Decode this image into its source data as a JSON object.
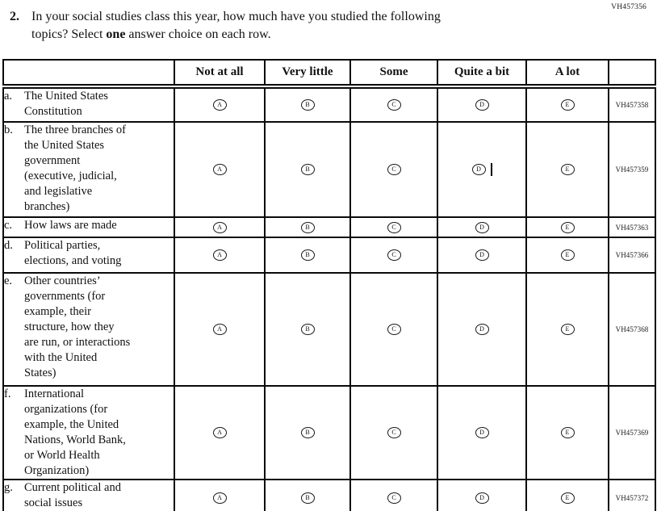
{
  "page": {
    "top_right_code": "VH457356",
    "question": {
      "number": "2.",
      "text_before_bold": "In your social studies class this year, how much have you studied the following\ntopics? Select ",
      "bold_word": "one",
      "text_after_bold": " answer choice on each row."
    }
  },
  "table": {
    "columns": [
      "Not at all",
      "Very little",
      "Some",
      "Quite a bit",
      "A lot"
    ],
    "options": [
      "A",
      "B",
      "C",
      "D",
      "E"
    ],
    "rows": [
      {
        "letter": "a.",
        "label": "The United States\nConstitution",
        "code": "VH457358"
      },
      {
        "letter": "b.",
        "label": "The three branches of\nthe United States\ngovernment\n(executive, judicial,\nand legislative\nbranches)",
        "code": "VH457359",
        "cursor_after": "D"
      },
      {
        "letter": "c.",
        "label": "How laws are made",
        "code": "VH457363"
      },
      {
        "letter": "d.",
        "label": "Political parties,\nelections, and voting",
        "code": "VH457366"
      },
      {
        "letter": "e.",
        "label": "Other countries’\ngovernments (for\nexample, their\nstructure, how they\nare run, or interactions\nwith the United\nStates)",
        "code": "VH457368"
      },
      {
        "letter": "f.",
        "label": "International\norganizations (for\nexample, the United\nNations, World Bank,\nor World Health\nOrganization)",
        "code": "VH457369"
      },
      {
        "letter": "g.",
        "label": "Current political and\nsocial issues",
        "code": "VH457372"
      }
    ]
  }
}
